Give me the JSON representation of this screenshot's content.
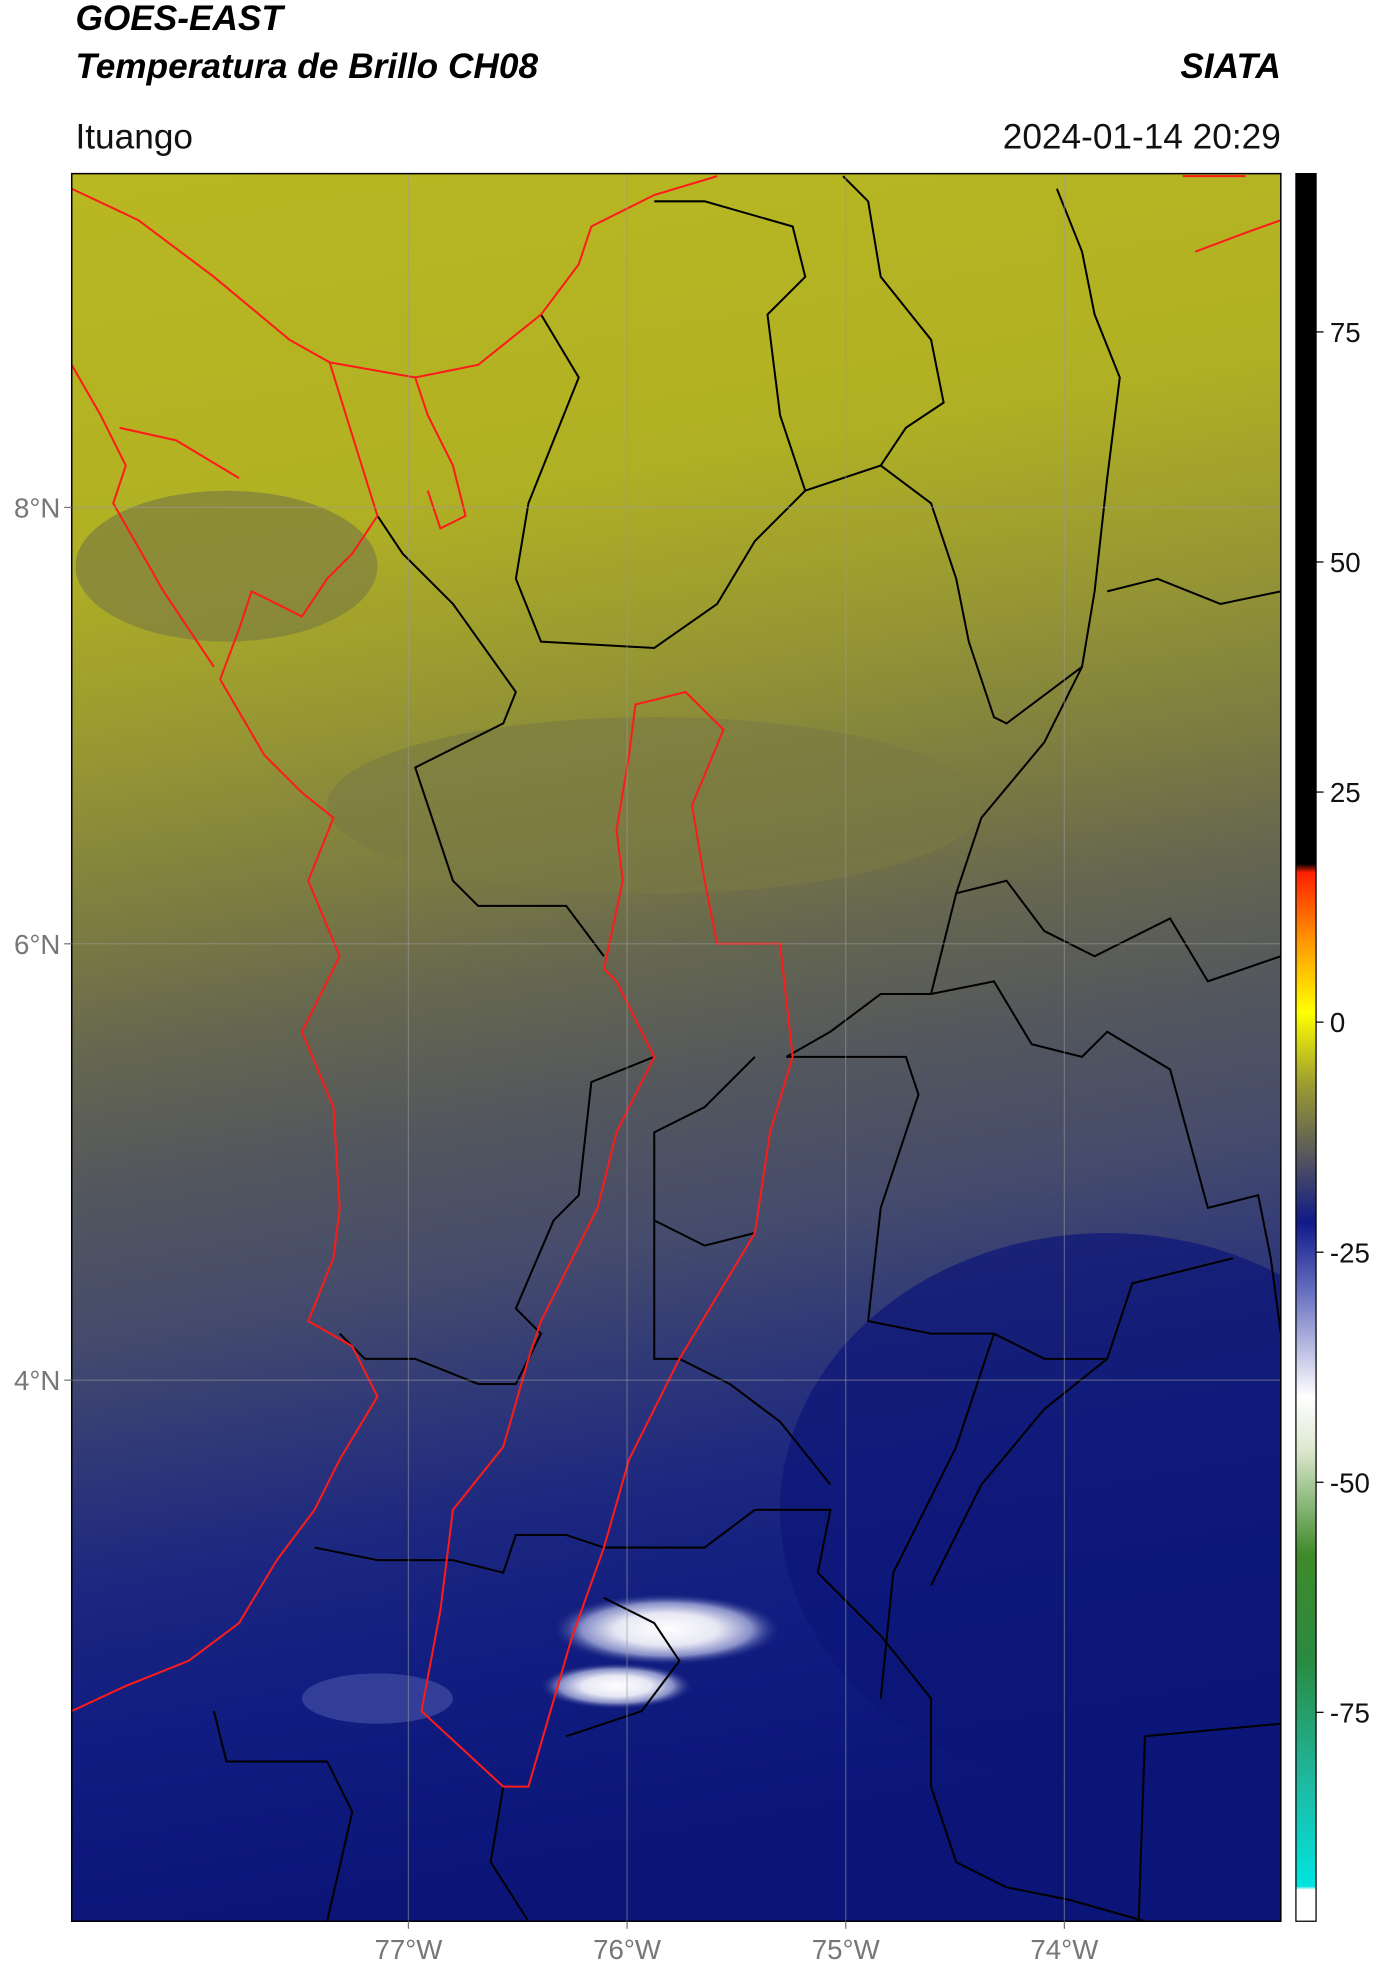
{
  "chart_data": {
    "type": "map",
    "title": "GOES-EAST",
    "subtitle": "Temperatura de Brillo CH08",
    "source": "SIATA",
    "location": "Ituango",
    "datetime": "2024-01-14 20:29",
    "xlim": [
      -78.54,
      -73.01
    ],
    "ylim": [
      1.52,
      9.53
    ],
    "xticks": [
      {
        "value": -77,
        "label": "77°W"
      },
      {
        "value": -76,
        "label": "76°W"
      },
      {
        "value": -75,
        "label": "75°W"
      },
      {
        "value": -74,
        "label": "74°W"
      }
    ],
    "yticks": [
      {
        "value": 4,
        "label": "4°N"
      },
      {
        "value": 6,
        "label": "6°N"
      },
      {
        "value": 8,
        "label": "8°N"
      }
    ],
    "grid": true,
    "colorbar": {
      "lim": [
        -97.7,
        92.2
      ],
      "ticks": [
        -75,
        -50,
        -25,
        0,
        25,
        50,
        75
      ]
    }
  }
}
